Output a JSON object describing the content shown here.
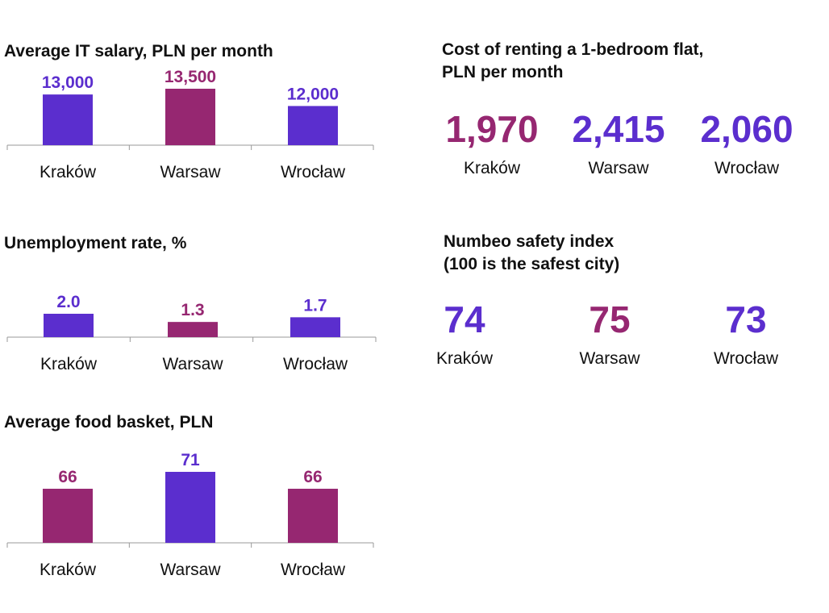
{
  "colors": {
    "purple": "#5B2ECE",
    "magenta": "#962771",
    "axis": "#999999"
  },
  "charts": [
    {
      "title": "Average IT salary, PLN per month",
      "chart_data": {
        "type": "bar",
        "title": "Average IT salary, PLN per month",
        "categories": [
          "Kraków",
          "Warsaw",
          "Wrocław"
        ],
        "values": [
          13000,
          13500,
          12000
        ],
        "value_labels": [
          "13,000",
          "13,500",
          "12,000"
        ],
        "bar_colors": [
          "#5B2ECE",
          "#962771",
          "#5B2ECE"
        ],
        "label_colors": [
          "#5B2ECE",
          "#962771",
          "#5B2ECE"
        ],
        "ylim": [
          8600,
          13500
        ],
        "xlabel": "",
        "ylabel": ""
      }
    },
    {
      "title": "Unemployment rate, %",
      "chart_data": {
        "type": "bar",
        "title": "Unemployment rate, %",
        "categories": [
          "Kraków",
          "Warsaw",
          "Wrocław"
        ],
        "values": [
          2.0,
          1.3,
          1.7
        ],
        "value_labels": [
          "2.0",
          "1.3",
          "1.7"
        ],
        "bar_colors": [
          "#5B2ECE",
          "#962771",
          "#5B2ECE"
        ],
        "label_colors": [
          "#5B2ECE",
          "#962771",
          "#5B2ECE"
        ],
        "ylim": [
          0,
          2.0
        ],
        "xlabel": "",
        "ylabel": ""
      }
    },
    {
      "title": "Average food basket, PLN",
      "chart_data": {
        "type": "bar",
        "title": "Average food basket, PLN",
        "categories": [
          "Kraków",
          "Warsaw",
          "Wrocław"
        ],
        "values": [
          66,
          71,
          66
        ],
        "value_labels": [
          "66",
          "71",
          "66"
        ],
        "bar_colors": [
          "#962771",
          "#5B2ECE",
          "#962771"
        ],
        "label_colors": [
          "#962771",
          "#5B2ECE",
          "#962771"
        ],
        "ylim": [
          50,
          71
        ],
        "xlabel": "",
        "ylabel": ""
      }
    }
  ],
  "rent": {
    "title_line1": "Cost of renting a 1-bedroom flat,",
    "title_line2": "PLN per month",
    "items": [
      {
        "value": "1,970",
        "city": "Kraków",
        "color": "#962771"
      },
      {
        "value": "2,415",
        "city": "Warsaw",
        "color": "#5B2ECE"
      },
      {
        "value": "2,060",
        "city": "Wrocław",
        "color": "#5B2ECE"
      }
    ]
  },
  "safety": {
    "title_line1": "Numbeo safety index",
    "title_line2": "(100 is the safest city)",
    "items": [
      {
        "value": "74",
        "city": "Kraków",
        "color": "#5B2ECE"
      },
      {
        "value": "75",
        "city": "Warsaw",
        "color": "#962771"
      },
      {
        "value": "73",
        "city": "Wrocław",
        "color": "#5B2ECE"
      }
    ]
  }
}
